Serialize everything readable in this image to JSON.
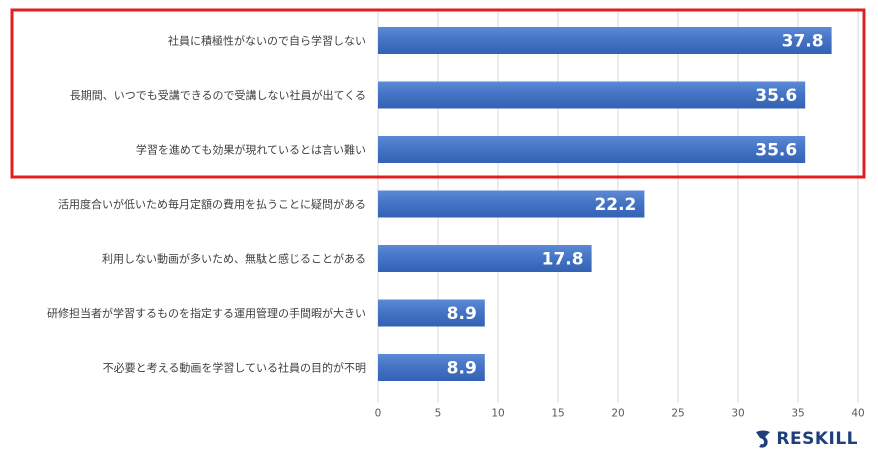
{
  "chart_data": {
    "type": "bar",
    "orientation": "horizontal",
    "categories": [
      "社員に積極性がないので自ら学習しない",
      "長期間、いつでも受講できるので受講しない社員が出てくる",
      "学習を進めても効果が現れているとは言い難い",
      "活用度合いが低いため毎月定額の費用を払うことに疑問がある",
      "利用しない動画が多いため、無駄と感じることがある",
      "研修担当者が学習するものを指定する運用管理の手間暇が大きい",
      "不必要と考える動画を学習している社員の目的が不明"
    ],
    "values": [
      37.8,
      35.6,
      35.6,
      22.2,
      17.8,
      8.9,
      8.9
    ],
    "value_labels": [
      "37.8",
      "35.6",
      "35.6",
      "22.2",
      "17.8",
      "8.9",
      "8.9"
    ],
    "xlim": [
      0,
      40
    ],
    "xticks": [
      "0",
      "5",
      "10",
      "15",
      "20",
      "25",
      "30",
      "35",
      "40"
    ],
    "grid": true,
    "bar_color": "#4472c4",
    "highlight": {
      "categories_highlighted": 3,
      "border_color": "#e02020"
    }
  },
  "brand": {
    "name": "RESKILL",
    "color": "#1f3f7a"
  }
}
